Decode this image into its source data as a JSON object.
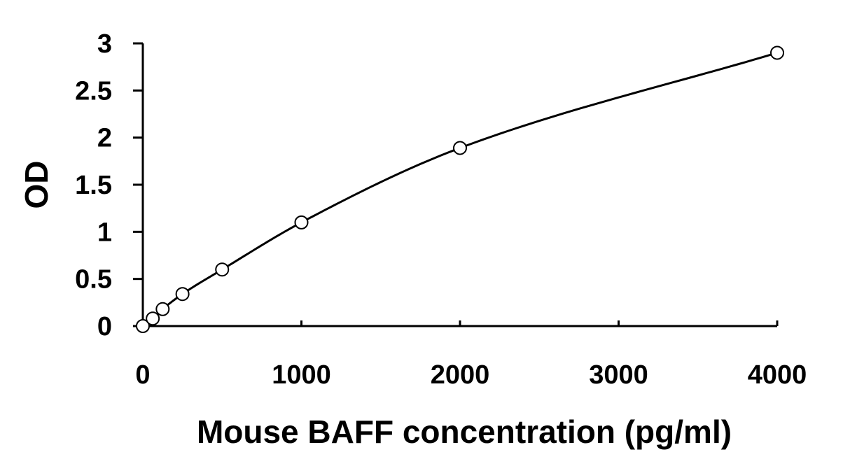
{
  "chart_data": {
    "type": "scatter",
    "title": "",
    "xlabel": "Mouse BAFF concentration (pg/ml)",
    "ylabel": "OD",
    "xlim": [
      0,
      4000
    ],
    "ylim": [
      0,
      3
    ],
    "x_ticks": [
      "0",
      "1000",
      "2000",
      "3000",
      "4000"
    ],
    "y_ticks": [
      "0",
      "0.5",
      "1",
      "1.5",
      "2",
      "2.5",
      "3"
    ],
    "grid": false,
    "legend": "none",
    "series": [
      {
        "x": [
          0,
          62.5,
          125,
          250,
          500,
          1000,
          2000,
          4000
        ],
        "y": [
          0.0,
          0.08,
          0.18,
          0.34,
          0.6,
          1.1,
          1.89,
          2.9
        ],
        "marker": "open-circle",
        "trendline": true
      }
    ],
    "colors": {
      "axis": "#000000",
      "marker_fill": "#ffffff",
      "marker_stroke": "#000000",
      "curve": "#000000"
    }
  }
}
